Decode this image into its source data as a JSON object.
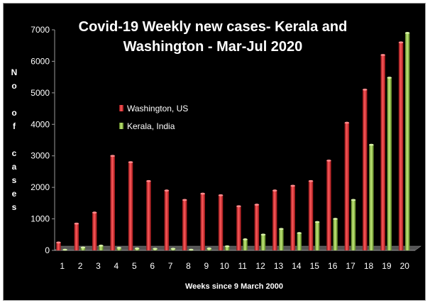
{
  "chart_data": {
    "type": "bar",
    "title_lines": [
      "Covid-19 Weekly new cases- Kerala and",
      "Washington - Mar-Jul 2020"
    ],
    "xlabel": "Weeks since 9 March 2000",
    "ylabel_lines": [
      "N",
      "o",
      "",
      "o",
      "f",
      "",
      "c",
      "a",
      "s",
      "e",
      "s"
    ],
    "ylim": [
      0,
      7000
    ],
    "yticks": [
      0,
      1000,
      2000,
      3000,
      4000,
      5000,
      6000,
      7000
    ],
    "ytick_labels": [
      "0",
      "1000",
      "2000",
      "3000",
      "4000",
      "5000",
      "6000",
      "7000"
    ],
    "categories": [
      "1",
      "2",
      "3",
      "4",
      "5",
      "6",
      "7",
      "8",
      "9",
      "10",
      "11",
      "12",
      "13",
      "14",
      "15",
      "16",
      "17",
      "18",
      "19",
      "20"
    ],
    "legend_position": "left",
    "grid": false,
    "series": [
      {
        "name": "Washington, US",
        "color": "#e8262a",
        "values": [
          250,
          850,
          1200,
          3000,
          2800,
          2200,
          1900,
          1600,
          1800,
          1750,
          1400,
          1450,
          1900,
          2050,
          2200,
          2850,
          4050,
          5100,
          6200,
          6600
        ]
      },
      {
        "name": "Kerala, India",
        "color": "#8dc63f",
        "values": [
          20,
          90,
          150,
          80,
          60,
          50,
          50,
          20,
          60,
          130,
          350,
          500,
          680,
          550,
          900,
          1000,
          1600,
          3350,
          5480,
          6900
        ]
      }
    ]
  }
}
